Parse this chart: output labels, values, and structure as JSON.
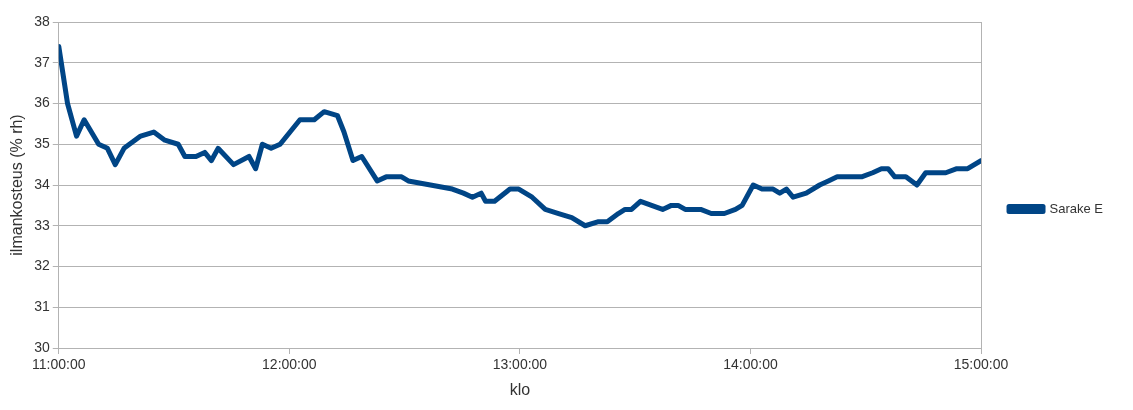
{
  "chart_data": {
    "type": "line",
    "xlabel": "klo",
    "ylabel": "ilmankosteus (% rh)",
    "xlim": [
      11,
      15
    ],
    "xticks": [
      {
        "value": 11,
        "label": "11:00:00"
      },
      {
        "value": 12,
        "label": "12:00:00"
      },
      {
        "value": 13,
        "label": "13:00:00"
      },
      {
        "value": 14,
        "label": "14:00:00"
      },
      {
        "value": 15,
        "label": "15:00:00"
      }
    ],
    "ylim": [
      30,
      38
    ],
    "yticks": [
      30,
      31,
      32,
      33,
      34,
      35,
      36,
      37,
      38
    ],
    "grid": "y",
    "legend": "right",
    "marker": "none",
    "line_style": "solid",
    "series": [
      {
        "name": "Sarake E",
        "color": "#004586",
        "x": [
          11.0,
          11.038,
          11.077,
          11.11,
          11.173,
          11.211,
          11.245,
          11.283,
          11.355,
          11.412,
          11.46,
          11.518,
          11.547,
          11.595,
          11.633,
          11.662,
          11.691,
          11.758,
          11.825,
          11.854,
          11.883,
          11.921,
          11.96,
          12.046,
          12.108,
          12.151,
          12.209,
          12.237,
          12.276,
          12.314,
          12.381,
          12.42,
          12.487,
          12.516,
          12.612,
          12.707,
          12.755,
          12.794,
          12.832,
          12.851,
          12.89,
          12.957,
          12.995,
          13.053,
          13.11,
          13.168,
          13.225,
          13.283,
          13.341,
          13.379,
          13.427,
          13.456,
          13.484,
          13.523,
          13.619,
          13.657,
          13.686,
          13.717,
          13.784,
          13.83,
          13.887,
          13.935,
          13.964,
          14.012,
          14.05,
          14.098,
          14.127,
          14.156,
          14.185,
          14.242,
          14.3,
          14.338,
          14.376,
          14.482,
          14.53,
          14.568,
          14.597,
          14.626,
          14.674,
          14.722,
          14.76,
          14.847,
          14.895,
          14.942,
          15.0
        ],
        "values": [
          37.4,
          36.0,
          35.2,
          35.6,
          35.0,
          34.9,
          34.5,
          34.9,
          35.2,
          35.3,
          35.1,
          35.0,
          34.7,
          34.7,
          34.8,
          34.6,
          34.9,
          34.5,
          34.7,
          34.4,
          35.0,
          34.9,
          35.0,
          35.6,
          35.6,
          35.8,
          35.7,
          35.3,
          34.6,
          34.7,
          34.1,
          34.2,
          34.2,
          34.1,
          34.0,
          33.9,
          33.8,
          33.7,
          33.8,
          33.6,
          33.6,
          33.9,
          33.9,
          33.7,
          33.4,
          33.3,
          33.2,
          33.0,
          33.1,
          33.1,
          33.3,
          33.4,
          33.4,
          33.6,
          33.4,
          33.5,
          33.5,
          33.4,
          33.4,
          33.3,
          33.3,
          33.4,
          33.5,
          34.0,
          33.9,
          33.9,
          33.8,
          33.9,
          33.7,
          33.8,
          34.0,
          34.1,
          34.2,
          34.2,
          34.3,
          34.4,
          34.4,
          34.2,
          34.2,
          34.0,
          34.3,
          34.3,
          34.4,
          34.4,
          34.6
        ]
      }
    ]
  }
}
